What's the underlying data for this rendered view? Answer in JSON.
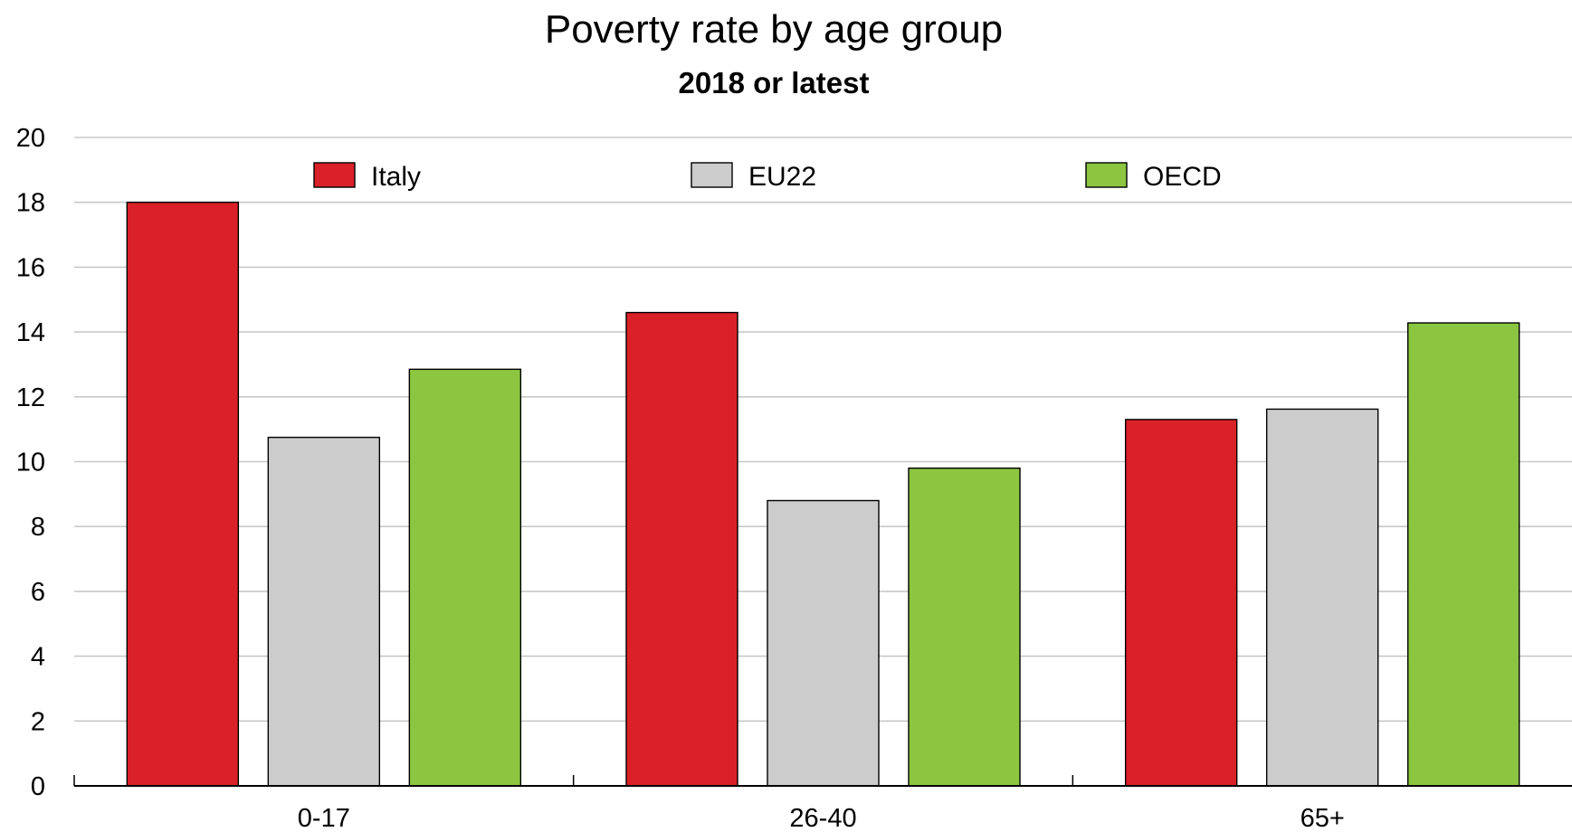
{
  "chart_data": {
    "type": "bar",
    "title": "Poverty rate by age group",
    "subtitle": "2018 or latest",
    "categories": [
      "0-17",
      "26-40",
      "65+"
    ],
    "series": [
      {
        "name": "Italy",
        "color": "#DA2128",
        "values": [
          18.0,
          14.6,
          11.3
        ]
      },
      {
        "name": "EU22",
        "color": "#CCCCCC",
        "values": [
          10.75,
          8.8,
          11.62
        ]
      },
      {
        "name": "OECD",
        "color": "#8CC641",
        "values": [
          12.85,
          9.8,
          14.28
        ]
      }
    ],
    "yticks": [
      "0",
      "2",
      "4",
      "6",
      "8",
      "10",
      "12",
      "14",
      "16",
      "18",
      "20"
    ],
    "ylim": [
      0,
      20
    ],
    "grid": true,
    "legend_position": "top"
  }
}
